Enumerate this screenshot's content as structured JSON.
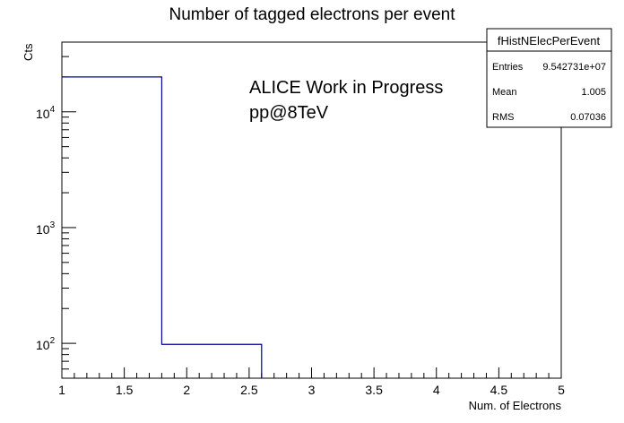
{
  "chart_data": {
    "type": "bar",
    "style": "step-histogram",
    "title": "Number of tagged electrons per event",
    "xlabel": "Num. of Electrons",
    "ylabel": "Cts",
    "xlim": [
      1,
      5
    ],
    "ylim": [
      50,
      40000
    ],
    "yscale": "log",
    "grid": false,
    "x_ticks": [
      1,
      1.5,
      2,
      2.5,
      3,
      3.5,
      4,
      4.5,
      5
    ],
    "x_tick_labels": [
      "1",
      "1.5",
      "2",
      "2.5",
      "3",
      "3.5",
      "4",
      "4.5",
      "5"
    ],
    "y_ticks": [
      100,
      1000,
      10000
    ],
    "y_tick_labels": [
      {
        "base": "10",
        "exp": "2"
      },
      {
        "base": "10",
        "exp": "3"
      },
      {
        "base": "10",
        "exp": "4"
      }
    ],
    "bins": [
      {
        "low": 1.0,
        "high": 1.8,
        "value": 20000
      },
      {
        "low": 1.8,
        "high": 2.6,
        "value": 98
      },
      {
        "low": 2.6,
        "high": 3.4,
        "value": 0
      },
      {
        "low": 3.4,
        "high": 4.2,
        "value": 0
      },
      {
        "low": 4.2,
        "high": 5.0,
        "value": 0
      }
    ],
    "line_color": "#000099",
    "annotations": [
      "ALICE Work in Progress",
      "pp@8TeV"
    ],
    "stats_box": {
      "name": "fHistNElecPerEvent",
      "rows": [
        {
          "label": "Entries",
          "value": "9.542731e+07"
        },
        {
          "label": "Mean",
          "value": "1.005"
        },
        {
          "label": "RMS",
          "value": "0.07036"
        }
      ],
      "placement": "top-right"
    }
  }
}
